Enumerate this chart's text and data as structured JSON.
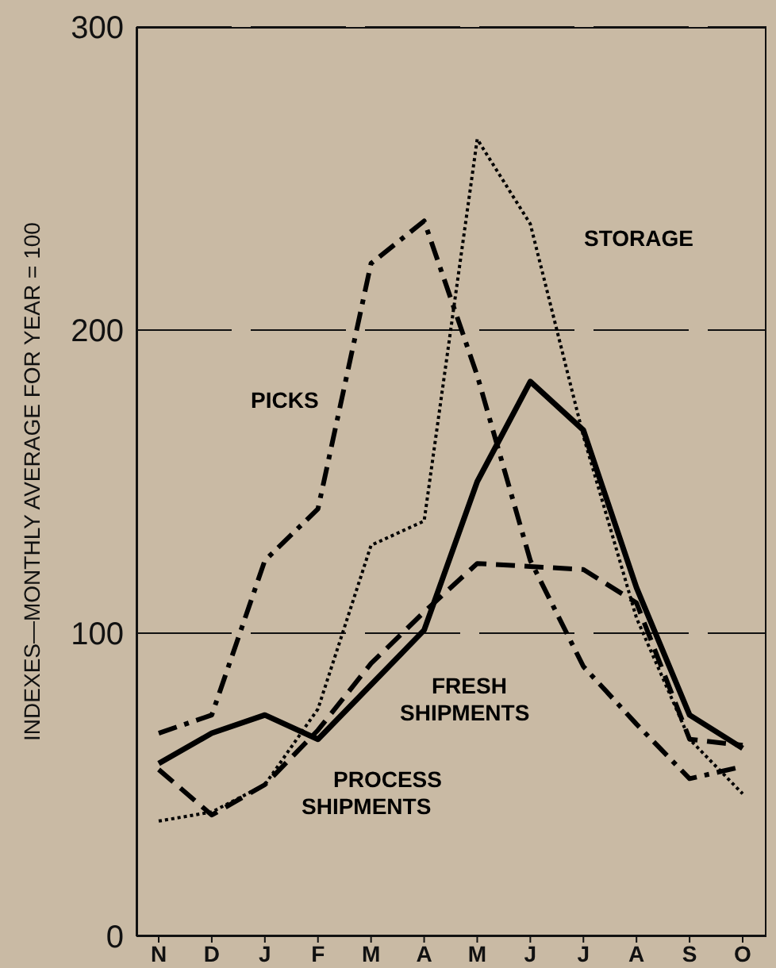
{
  "chart_data": {
    "type": "line",
    "ylabel": "INDEXES—MONTHLY AVERAGE FOR YEAR = 100",
    "categories": [
      "N",
      "D",
      "J",
      "F",
      "M",
      "A",
      "M",
      "J",
      "J",
      "A",
      "S",
      "O"
    ],
    "series": [
      {
        "name": "FRESH SHIPMENTS",
        "color": "#000000",
        "line_style": "solid",
        "values": [
          57,
          67,
          73,
          65,
          83,
          101,
          150,
          183,
          167,
          115,
          73,
          62
        ]
      },
      {
        "name": "PROCESS SHIPMENTS",
        "color": "#000000",
        "line_style": "dashed",
        "values": [
          55,
          40,
          50,
          68,
          90,
          107,
          123,
          122,
          121,
          110,
          65,
          63
        ]
      },
      {
        "name": "PICKS",
        "color": "#000000",
        "line_style": "dashdot",
        "values": [
          67,
          73,
          124,
          141,
          222,
          236,
          185,
          124,
          89,
          70,
          52,
          56
        ]
      },
      {
        "name": "STORAGE",
        "color": "#000000",
        "line_style": "dotted",
        "values": [
          38,
          41,
          50,
          75,
          129,
          137,
          263,
          235,
          165,
          105,
          65,
          47
        ]
      }
    ],
    "ylim": [
      0,
      300
    ],
    "yticks": [
      0,
      100,
      200,
      300
    ],
    "grid": "y",
    "marker": "none"
  }
}
